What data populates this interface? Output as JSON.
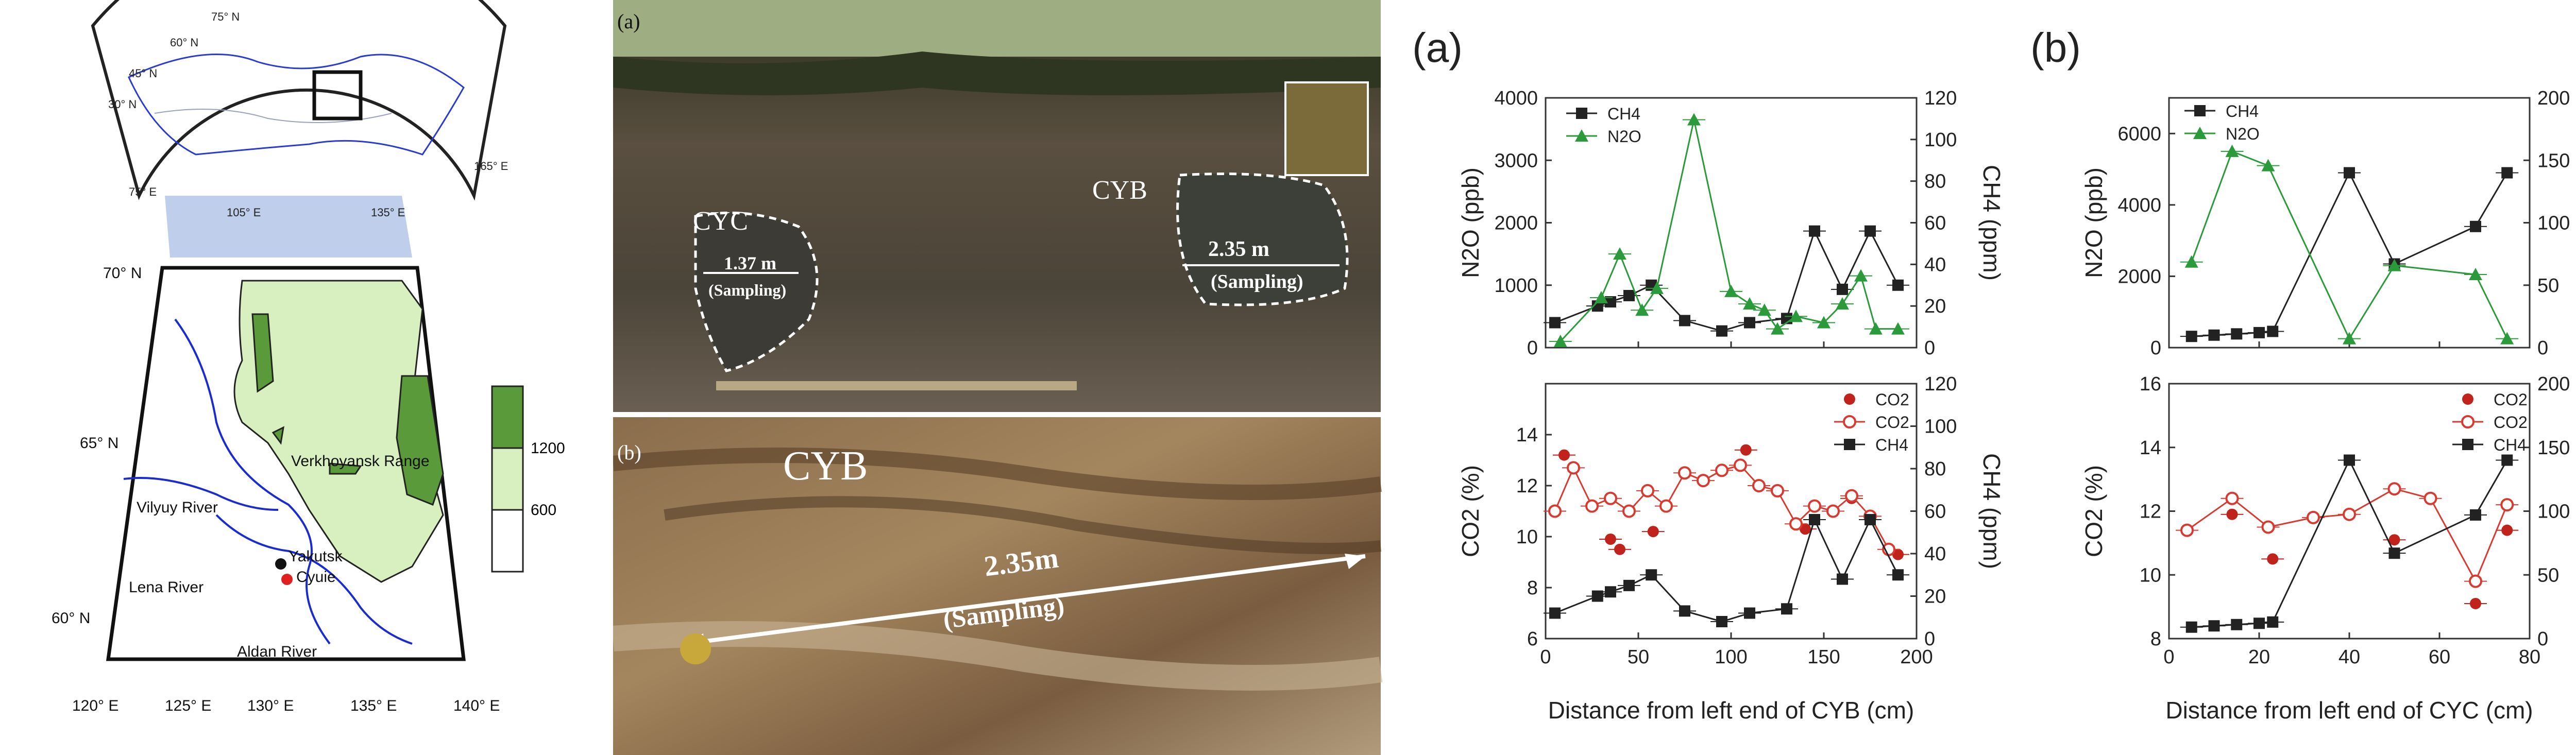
{
  "map": {
    "lat_labels": [
      "70° N",
      "65° N",
      "60° N"
    ],
    "lon_labels": [
      "120° E",
      "125° E",
      "130° E",
      "135° E",
      "140° E"
    ],
    "inset_labels": [
      "105° E",
      "135° E",
      "75° E",
      "165° E",
      "75° N",
      "60° N",
      "45° N",
      "30° N"
    ],
    "rivers": [
      "Vilyuy River",
      "Lena River",
      "Aldan River"
    ],
    "range": "Verkhoyansk Range",
    "cities": [
      "Yakutsk",
      "Cyuie"
    ],
    "legend": [
      "1200",
      "600"
    ],
    "colors": {
      "high": "#5a9a3a",
      "mid": "#d8f0c0",
      "low": "#ffffff",
      "river": "#1a2bd0",
      "site": "#e02020"
    }
  },
  "photos": {
    "a_label": "(a)",
    "b_label": "(b)",
    "cyc": "CYC",
    "cyb": "CYB",
    "cyc_depth": "1.37 m",
    "cyb_depth": "2.35 m",
    "sampling": "(Sampling)",
    "b_cyb": "CYB",
    "b_depth": "2.35m",
    "b_sampling": "(Sampling)"
  },
  "chart_data": [
    {
      "panel": "(a)",
      "type": "line",
      "xlabel": "Distance from left end of CYB (cm)",
      "xlim": [
        0,
        200
      ],
      "xticks": [
        0,
        50,
        100,
        150,
        200
      ],
      "top": {
        "ylabel_left": "N2O (ppb)",
        "ylabel_right": "CH4 (ppm)",
        "ylim_left": [
          0,
          4000
        ],
        "ylim_right": [
          0,
          120
        ],
        "yticks_left": [
          0,
          1000,
          2000,
          3000,
          4000
        ],
        "yticks_right": [
          0,
          20,
          40,
          60,
          80,
          100,
          120
        ],
        "legend": [
          "CH4",
          "N2O"
        ],
        "series": [
          {
            "name": "CH4",
            "axis": "right",
            "color": "#222222",
            "marker": "square",
            "x": [
              5,
              28,
              35,
              45,
              57,
              75,
              95,
              110,
              130,
              145,
              160,
              175,
              190
            ],
            "y": [
              12,
              20,
              22,
              25,
              30,
              13,
              8,
              12,
              14,
              56,
              28,
              56,
              30
            ]
          },
          {
            "name": "N2O",
            "axis": "left",
            "color": "#2a9a3a",
            "marker": "triangle",
            "x": [
              8,
              30,
              40,
              52,
              60,
              80,
              100,
              110,
              118,
              125,
              135,
              150,
              160,
              170,
              178,
              190
            ],
            "y": [
              100,
              800,
              1500,
              600,
              950,
              3650,
              900,
              700,
              600,
              300,
              500,
              400,
              700,
              1150,
              300,
              300
            ]
          }
        ]
      },
      "bottom": {
        "ylabel_left": "CO2 (%)",
        "ylabel_right": "CH4 (ppm)",
        "ylim_left": [
          6,
          16
        ],
        "ylim_right": [
          0,
          120
        ],
        "yticks_left": [
          6,
          8,
          10,
          12,
          14
        ],
        "yticks_right": [
          0,
          20,
          40,
          60,
          80,
          100,
          120
        ],
        "legend": [
          "CO2",
          "CO2",
          "CH4"
        ],
        "series": [
          {
            "name": "CO2",
            "axis": "left",
            "color": "#c0221c",
            "marker": "filled-circle",
            "x": [
              10,
              35,
              40,
              58,
              108,
              140,
              165,
              190
            ],
            "y": [
              13.2,
              9.9,
              9.5,
              10.2,
              13.4,
              10.3,
              11.5,
              9.3
            ]
          },
          {
            "name": "CO2",
            "axis": "left",
            "color": "#d83a30",
            "marker": "open-circle",
            "x": [
              5,
              15,
              25,
              35,
              45,
              55,
              65,
              75,
              85,
              95,
              105,
              115,
              125,
              135,
              145,
              155,
              165,
              175,
              185
            ],
            "y": [
              11.0,
              12.7,
              11.2,
              11.5,
              11.0,
              11.8,
              11.2,
              12.5,
              12.2,
              12.6,
              12.8,
              12.0,
              11.8,
              10.5,
              11.2,
              11.0,
              11.6,
              10.8,
              9.5
            ]
          },
          {
            "name": "CH4",
            "axis": "right",
            "color": "#222222",
            "marker": "square",
            "x": [
              5,
              28,
              35,
              45,
              57,
              75,
              95,
              110,
              130,
              145,
              160,
              175,
              190
            ],
            "y": [
              12,
              20,
              22,
              25,
              30,
              13,
              8,
              12,
              14,
              56,
              28,
              56,
              30
            ]
          }
        ]
      }
    },
    {
      "panel": "(b)",
      "type": "line",
      "xlabel": "Distance from left end of CYC (cm)",
      "xlim": [
        0,
        80
      ],
      "xticks": [
        0,
        20,
        40,
        60,
        80
      ],
      "top": {
        "ylabel_left": "N2O (ppb)",
        "ylabel_right": "CH4 (ppm)",
        "ylim_left": [
          0,
          7000
        ],
        "ylim_right": [
          0,
          200
        ],
        "yticks_left": [
          0,
          2000,
          4000,
          6000
        ],
        "yticks_right": [
          0,
          50,
          100,
          150,
          200
        ],
        "legend": [
          "CH4",
          "N2O"
        ],
        "series": [
          {
            "name": "CH4",
            "axis": "right",
            "color": "#222222",
            "marker": "square",
            "x": [
              5,
              10,
              15,
              20,
              23,
              40,
              50,
              68,
              75
            ],
            "y": [
              9,
              10,
              11,
              12,
              13,
              140,
              67,
              97,
              140
            ]
          },
          {
            "name": "N2O",
            "axis": "left",
            "color": "#2a9a3a",
            "marker": "triangle",
            "x": [
              5,
              14,
              22,
              40,
              50,
              68,
              75
            ],
            "y": [
              2400,
              5500,
              5100,
              250,
              2300,
              2050,
              250
            ]
          }
        ]
      },
      "bottom": {
        "ylabel_left": "CO2 (%)",
        "ylabel_right": "CH4 (ppm)",
        "ylim_left": [
          8,
          16
        ],
        "ylim_right": [
          0,
          200
        ],
        "yticks_left": [
          8,
          10,
          12,
          14,
          16
        ],
        "yticks_right": [
          0,
          50,
          100,
          150,
          200
        ],
        "legend": [
          "CO2",
          "CO2",
          "CH4"
        ],
        "series": [
          {
            "name": "CO2",
            "axis": "left",
            "color": "#c0221c",
            "marker": "filled-circle",
            "x": [
              14,
              23,
              50,
              68,
              75
            ],
            "y": [
              11.9,
              10.5,
              11.1,
              9.1,
              11.4
            ]
          },
          {
            "name": "CO2",
            "axis": "left",
            "color": "#d83a30",
            "marker": "open-circle",
            "x": [
              4,
              14,
              22,
              32,
              40,
              50,
              58,
              68,
              75
            ],
            "y": [
              11.4,
              12.4,
              11.5,
              11.8,
              11.9,
              12.7,
              12.4,
              9.8,
              12.2
            ]
          },
          {
            "name": "CH4",
            "axis": "right",
            "color": "#222222",
            "marker": "square",
            "x": [
              5,
              10,
              15,
              20,
              23,
              40,
              50,
              68,
              75
            ],
            "y": [
              9,
              10,
              11,
              12,
              13,
              140,
              67,
              97,
              140
            ]
          }
        ]
      }
    }
  ]
}
